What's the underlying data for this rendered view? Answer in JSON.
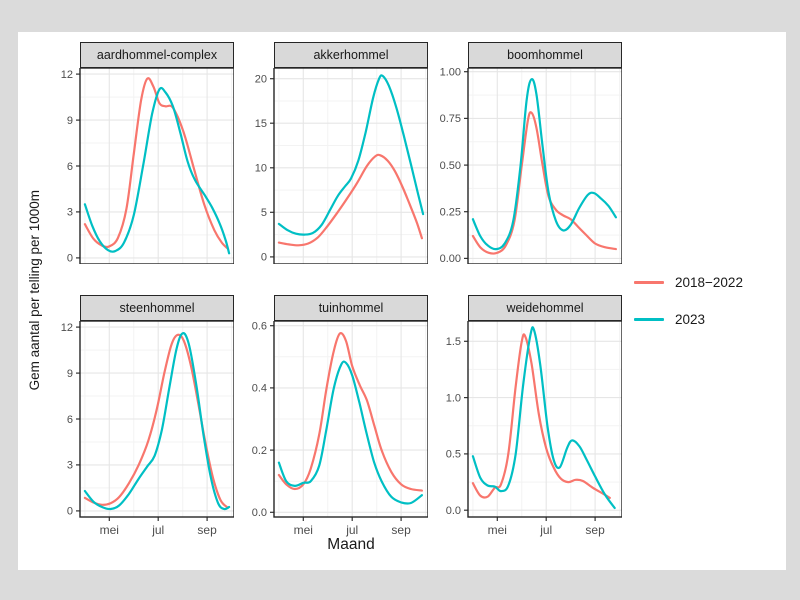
{
  "theme": {
    "canvas_bg": "#DBDBDB",
    "figure_bg": "#FFFFFF",
    "strip_bg": "#D9D9D9",
    "panel_border": "#262626",
    "grid_major": "#E6E6E6",
    "grid_minor": "#F3F3F3",
    "tick_color": "#333333",
    "tick_text": "#4D4D4D",
    "text": "#1A1A1A"
  },
  "chart_data": {
    "type": "line",
    "title": "",
    "xlabel": "Maand",
    "ylabel": "Gem aantal per telling per 1000m",
    "xlim": [
      3.8,
      10.1
    ],
    "xticks": [
      {
        "v": 5,
        "label": "mei"
      },
      {
        "v": 7,
        "label": "jul"
      },
      {
        "v": 9,
        "label": "sep"
      }
    ],
    "minor_x": [
      4,
      6,
      8,
      10
    ],
    "grid": true,
    "legend_position": "right-center",
    "series": [
      {
        "name": "2018−2022",
        "color": "#F8766D"
      },
      {
        "name": "2023",
        "color": "#00BFC4"
      }
    ],
    "facets": [
      {
        "label": "aardhommel-complex",
        "ylim": [
          -0.4,
          12.4
        ],
        "yticks": [
          0,
          3,
          6,
          9,
          12
        ],
        "ytick_labels": [
          "0",
          "3",
          "6",
          "9",
          "12"
        ],
        "values": [
          [
            [
              4.0,
              2.2
            ],
            [
              4.35,
              1.25
            ],
            [
              4.7,
              0.8
            ],
            [
              5.0,
              0.75
            ],
            [
              5.35,
              1.3
            ],
            [
              5.7,
              3.2
            ],
            [
              6.0,
              6.8
            ],
            [
              6.3,
              10.3
            ],
            [
              6.55,
              11.7
            ],
            [
              6.8,
              11.2
            ],
            [
              7.05,
              10.1
            ],
            [
              7.3,
              9.9
            ],
            [
              7.55,
              9.9
            ],
            [
              7.8,
              9.2
            ],
            [
              8.1,
              7.9
            ],
            [
              8.5,
              5.6
            ],
            [
              8.9,
              3.4
            ],
            [
              9.3,
              1.8
            ],
            [
              9.6,
              1.0
            ],
            [
              9.85,
              0.6
            ]
          ],
          [
            [
              4.0,
              3.5
            ],
            [
              4.3,
              2.1
            ],
            [
              4.6,
              1.1
            ],
            [
              4.95,
              0.5
            ],
            [
              5.25,
              0.45
            ],
            [
              5.6,
              1.0
            ],
            [
              6.0,
              2.8
            ],
            [
              6.4,
              6.2
            ],
            [
              6.75,
              9.4
            ],
            [
              7.05,
              11.0
            ],
            [
              7.3,
              10.8
            ],
            [
              7.6,
              9.9
            ],
            [
              7.9,
              8.2
            ],
            [
              8.2,
              6.3
            ],
            [
              8.5,
              5.1
            ],
            [
              8.9,
              4.1
            ],
            [
              9.2,
              3.3
            ],
            [
              9.5,
              2.3
            ],
            [
              9.75,
              1.2
            ],
            [
              9.9,
              0.3
            ]
          ]
        ]
      },
      {
        "label": "akkerhommel",
        "ylim": [
          -0.8,
          21.2
        ],
        "yticks": [
          0,
          5,
          10,
          15,
          20
        ],
        "ytick_labels": [
          "0",
          "5",
          "10",
          "15",
          "20"
        ],
        "values": [
          [
            [
              4.0,
              1.6
            ],
            [
              4.4,
              1.4
            ],
            [
              4.8,
              1.3
            ],
            [
              5.2,
              1.5
            ],
            [
              5.6,
              2.2
            ],
            [
              6.0,
              3.5
            ],
            [
              6.4,
              5.0
            ],
            [
              6.8,
              6.6
            ],
            [
              7.2,
              8.3
            ],
            [
              7.6,
              10.2
            ],
            [
              7.95,
              11.3
            ],
            [
              8.15,
              11.4
            ],
            [
              8.45,
              10.8
            ],
            [
              8.75,
              9.6
            ],
            [
              9.05,
              7.9
            ],
            [
              9.35,
              5.9
            ],
            [
              9.65,
              3.8
            ],
            [
              9.85,
              2.1
            ]
          ],
          [
            [
              4.0,
              3.7
            ],
            [
              4.35,
              3.0
            ],
            [
              4.7,
              2.6
            ],
            [
              5.05,
              2.5
            ],
            [
              5.4,
              2.7
            ],
            [
              5.75,
              3.6
            ],
            [
              6.1,
              5.3
            ],
            [
              6.4,
              6.8
            ],
            [
              6.7,
              7.9
            ],
            [
              6.95,
              8.8
            ],
            [
              7.25,
              10.8
            ],
            [
              7.55,
              14.0
            ],
            [
              7.85,
              17.8
            ],
            [
              8.1,
              20.0
            ],
            [
              8.25,
              20.3
            ],
            [
              8.5,
              19.2
            ],
            [
              8.8,
              16.8
            ],
            [
              9.1,
              13.7
            ],
            [
              9.4,
              10.4
            ],
            [
              9.7,
              7.0
            ],
            [
              9.9,
              4.8
            ]
          ]
        ]
      },
      {
        "label": "boomhommel",
        "ylim": [
          -0.03,
          1.02
        ],
        "yticks": [
          0,
          0.25,
          0.5,
          0.75,
          1.0
        ],
        "ytick_labels": [
          "0.00",
          "0.25",
          "0.50",
          "0.75",
          "1.00"
        ],
        "values": [
          [
            [
              4.0,
              0.12
            ],
            [
              4.3,
              0.06
            ],
            [
              4.65,
              0.03
            ],
            [
              5.0,
              0.03
            ],
            [
              5.35,
              0.07
            ],
            [
              5.7,
              0.2
            ],
            [
              6.0,
              0.5
            ],
            [
              6.25,
              0.74
            ],
            [
              6.4,
              0.78
            ],
            [
              6.6,
              0.7
            ],
            [
              6.85,
              0.5
            ],
            [
              7.1,
              0.33
            ],
            [
              7.4,
              0.26
            ],
            [
              7.7,
              0.23
            ],
            [
              8.0,
              0.21
            ],
            [
              8.3,
              0.17
            ],
            [
              8.6,
              0.13
            ],
            [
              9.0,
              0.08
            ],
            [
              9.4,
              0.06
            ],
            [
              9.85,
              0.05
            ]
          ],
          [
            [
              4.0,
              0.21
            ],
            [
              4.3,
              0.12
            ],
            [
              4.6,
              0.07
            ],
            [
              4.95,
              0.05
            ],
            [
              5.3,
              0.08
            ],
            [
              5.65,
              0.2
            ],
            [
              5.95,
              0.5
            ],
            [
              6.2,
              0.85
            ],
            [
              6.4,
              0.96
            ],
            [
              6.6,
              0.88
            ],
            [
              6.85,
              0.6
            ],
            [
              7.1,
              0.35
            ],
            [
              7.4,
              0.2
            ],
            [
              7.7,
              0.15
            ],
            [
              8.0,
              0.18
            ],
            [
              8.35,
              0.27
            ],
            [
              8.7,
              0.34
            ],
            [
              8.95,
              0.35
            ],
            [
              9.25,
              0.32
            ],
            [
              9.55,
              0.28
            ],
            [
              9.85,
              0.22
            ]
          ]
        ]
      },
      {
        "label": "steenhommel",
        "ylim": [
          -0.4,
          12.4
        ],
        "yticks": [
          0,
          3,
          6,
          9,
          12
        ],
        "ytick_labels": [
          "0",
          "3",
          "6",
          "9",
          "12"
        ],
        "values": [
          [
            [
              4.0,
              0.85
            ],
            [
              4.35,
              0.55
            ],
            [
              4.7,
              0.4
            ],
            [
              5.05,
              0.5
            ],
            [
              5.4,
              0.9
            ],
            [
              5.8,
              1.8
            ],
            [
              6.2,
              3.0
            ],
            [
              6.6,
              4.6
            ],
            [
              6.95,
              6.7
            ],
            [
              7.25,
              9.0
            ],
            [
              7.55,
              10.9
            ],
            [
              7.8,
              11.5
            ],
            [
              8.05,
              11.1
            ],
            [
              8.35,
              9.4
            ],
            [
              8.65,
              6.9
            ],
            [
              8.95,
              4.3
            ],
            [
              9.25,
              2.1
            ],
            [
              9.55,
              0.7
            ],
            [
              9.85,
              0.2
            ]
          ],
          [
            [
              4.0,
              1.3
            ],
            [
              4.35,
              0.6
            ],
            [
              4.7,
              0.25
            ],
            [
              5.05,
              0.12
            ],
            [
              5.4,
              0.35
            ],
            [
              5.8,
              1.1
            ],
            [
              6.2,
              2.1
            ],
            [
              6.55,
              2.9
            ],
            [
              6.85,
              3.6
            ],
            [
              7.15,
              5.3
            ],
            [
              7.45,
              8.0
            ],
            [
              7.75,
              10.6
            ],
            [
              8.0,
              11.6
            ],
            [
              8.25,
              10.9
            ],
            [
              8.55,
              8.3
            ],
            [
              8.85,
              5.0
            ],
            [
              9.15,
              2.2
            ],
            [
              9.45,
              0.5
            ],
            [
              9.7,
              0.12
            ],
            [
              9.9,
              0.25
            ]
          ]
        ]
      },
      {
        "label": "tuinhommel",
        "ylim": [
          -0.015,
          0.615
        ],
        "yticks": [
          0,
          0.2,
          0.4,
          0.6
        ],
        "ytick_labels": [
          "0.0",
          "0.2",
          "0.4",
          "0.6"
        ],
        "values": [
          [
            [
              4.0,
              0.12
            ],
            [
              4.3,
              0.09
            ],
            [
              4.65,
              0.075
            ],
            [
              5.0,
              0.09
            ],
            [
              5.3,
              0.14
            ],
            [
              5.65,
              0.25
            ],
            [
              5.95,
              0.4
            ],
            [
              6.25,
              0.52
            ],
            [
              6.5,
              0.575
            ],
            [
              6.75,
              0.55
            ],
            [
              7.0,
              0.47
            ],
            [
              7.3,
              0.41
            ],
            [
              7.6,
              0.36
            ],
            [
              7.9,
              0.28
            ],
            [
              8.2,
              0.2
            ],
            [
              8.6,
              0.13
            ],
            [
              9.0,
              0.09
            ],
            [
              9.4,
              0.075
            ],
            [
              9.85,
              0.07
            ]
          ],
          [
            [
              4.0,
              0.16
            ],
            [
              4.3,
              0.1
            ],
            [
              4.65,
              0.085
            ],
            [
              5.0,
              0.095
            ],
            [
              5.3,
              0.1
            ],
            [
              5.65,
              0.15
            ],
            [
              5.95,
              0.27
            ],
            [
              6.25,
              0.4
            ],
            [
              6.55,
              0.475
            ],
            [
              6.75,
              0.48
            ],
            [
              7.0,
              0.44
            ],
            [
              7.3,
              0.35
            ],
            [
              7.6,
              0.25
            ],
            [
              7.9,
              0.16
            ],
            [
              8.2,
              0.1
            ],
            [
              8.6,
              0.05
            ],
            [
              9.0,
              0.032
            ],
            [
              9.4,
              0.03
            ],
            [
              9.85,
              0.055
            ]
          ]
        ]
      },
      {
        "label": "weidehommel",
        "ylim": [
          -0.06,
          1.68
        ],
        "yticks": [
          0,
          0.5,
          1.0,
          1.5
        ],
        "ytick_labels": [
          "0.0",
          "0.5",
          "1.0",
          "1.5"
        ],
        "values": [
          [
            [
              4.0,
              0.24
            ],
            [
              4.3,
              0.13
            ],
            [
              4.6,
              0.12
            ],
            [
              4.9,
              0.2
            ],
            [
              5.15,
              0.23
            ],
            [
              5.45,
              0.5
            ],
            [
              5.75,
              1.1
            ],
            [
              6.0,
              1.5
            ],
            [
              6.15,
              1.54
            ],
            [
              6.4,
              1.3
            ],
            [
              6.7,
              0.85
            ],
            [
              7.0,
              0.55
            ],
            [
              7.3,
              0.38
            ],
            [
              7.6,
              0.28
            ],
            [
              7.9,
              0.25
            ],
            [
              8.2,
              0.27
            ],
            [
              8.5,
              0.26
            ],
            [
              8.9,
              0.2
            ],
            [
              9.3,
              0.15
            ],
            [
              9.6,
              0.11
            ]
          ],
          [
            [
              4.0,
              0.48
            ],
            [
              4.3,
              0.29
            ],
            [
              4.6,
              0.22
            ],
            [
              4.9,
              0.21
            ],
            [
              5.15,
              0.17
            ],
            [
              5.45,
              0.22
            ],
            [
              5.75,
              0.5
            ],
            [
              6.05,
              1.1
            ],
            [
              6.35,
              1.55
            ],
            [
              6.5,
              1.6
            ],
            [
              6.75,
              1.3
            ],
            [
              7.05,
              0.75
            ],
            [
              7.3,
              0.45
            ],
            [
              7.55,
              0.38
            ],
            [
              7.85,
              0.55
            ],
            [
              8.05,
              0.62
            ],
            [
              8.35,
              0.57
            ],
            [
              8.65,
              0.45
            ],
            [
              9.0,
              0.3
            ],
            [
              9.4,
              0.14
            ],
            [
              9.8,
              0.02
            ]
          ]
        ]
      }
    ]
  }
}
